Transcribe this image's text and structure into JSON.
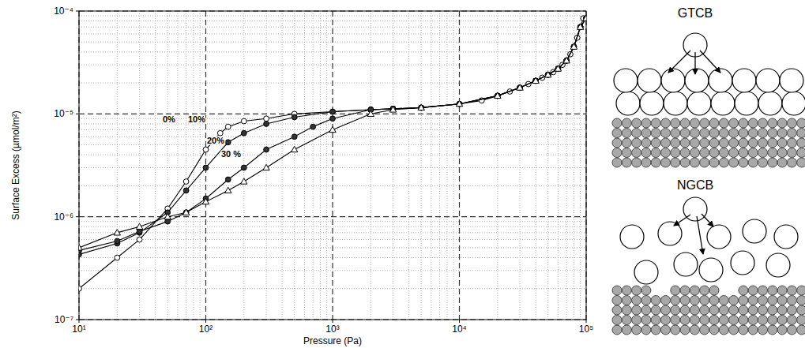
{
  "chart_data": {
    "type": "line",
    "x_label": "Pressure (Pa)",
    "y_label": "Surface Excess (µmol/m²)",
    "log": true,
    "grid": true,
    "xlim": [
      10,
      100000
    ],
    "ylim": [
      1e-07,
      0.0001
    ],
    "xticks": [
      {
        "value": 10,
        "label": "10¹"
      },
      {
        "value": 100,
        "label": "10²"
      },
      {
        "value": 1000,
        "label": "10³"
      },
      {
        "value": 10000,
        "label": "10⁴"
      },
      {
        "value": 100000,
        "label": "10⁵"
      }
    ],
    "yticks": [
      {
        "value": 1e-07,
        "label": "10⁻⁷"
      },
      {
        "value": 1e-06,
        "label": "10⁻⁶"
      },
      {
        "value": 1e-05,
        "label": "10⁻⁵"
      },
      {
        "value": 0.0001,
        "label": "10⁻⁴"
      }
    ],
    "series": [
      {
        "name": "0%",
        "color": "#000000",
        "marker": "circle-open",
        "line_style": "solid",
        "x": [
          10,
          20,
          30,
          50,
          70,
          100,
          130,
          150,
          200,
          300,
          500,
          1000,
          2000,
          3000,
          5000,
          10000,
          15000,
          20000,
          25000,
          30000,
          35000,
          40000,
          45000,
          50000,
          55000,
          60000,
          65000,
          70000,
          75000,
          80000,
          85000,
          90000,
          95000,
          100000
        ],
        "values": [
          2e-07,
          4e-07,
          6e-07,
          1.2e-06,
          2.2e-06,
          4.5e-06,
          6.5e-06,
          7.5e-06,
          8.5e-06,
          9e-06,
          1e-05,
          1.05e-05,
          1.1e-05,
          1.12e-05,
          1.15e-05,
          1.25e-05,
          1.35e-05,
          1.5e-05,
          1.65e-05,
          1.8e-05,
          1.95e-05,
          2.1e-05,
          2.25e-05,
          2.4e-05,
          2.55e-05,
          2.75e-05,
          3e-05,
          3.3e-05,
          3.8e-05,
          4.5e-05,
          5.5e-05,
          7e-05,
          8.5e-05,
          8.5e-05
        ]
      },
      {
        "name": "10%",
        "color": "#000000",
        "marker": "circle",
        "line_style": "solid",
        "x": [
          10,
          20,
          30,
          50,
          70,
          100,
          150,
          200,
          300,
          500,
          1000,
          2000,
          3000,
          5000,
          10000,
          20000,
          30000,
          40000,
          50000,
          60000,
          70000,
          80000,
          90000,
          100000
        ],
        "values": [
          4.3e-07,
          5.5e-07,
          7e-07,
          1.1e-06,
          1.8e-06,
          3e-06,
          5.3e-06,
          6.5e-06,
          8e-06,
          9.3e-06,
          1.05e-05,
          1.1e-05,
          1.12e-05,
          1.15e-05,
          1.25e-05,
          1.5e-05,
          1.8e-05,
          2.1e-05,
          2.4e-05,
          2.75e-05,
          3.3e-05,
          4.5e-05,
          7e-05,
          8.5e-05
        ]
      },
      {
        "name": "20%",
        "color": "#000000",
        "marker": "circle",
        "line_style": "solid",
        "x": [
          10,
          20,
          30,
          50,
          70,
          100,
          150,
          200,
          300,
          500,
          700,
          1000,
          2000,
          3000,
          5000,
          10000,
          20000,
          30000,
          40000,
          50000,
          60000,
          70000,
          80000,
          90000,
          100000
        ],
        "values": [
          4.7e-07,
          5.8e-07,
          7.2e-07,
          9e-07,
          1.1e-06,
          1.5e-06,
          2.3e-06,
          3e-06,
          4.5e-06,
          6e-06,
          7.5e-06,
          9e-06,
          1.1e-05,
          1.12e-05,
          1.15e-05,
          1.25e-05,
          1.5e-05,
          1.8e-05,
          2.1e-05,
          2.4e-05,
          2.75e-05,
          3.3e-05,
          4.5e-05,
          7e-05,
          8.5e-05
        ]
      },
      {
        "name": "30 %",
        "color": "#000000",
        "marker": "triangle-open",
        "line_style": "solid",
        "x": [
          10,
          20,
          30,
          50,
          70,
          100,
          150,
          200,
          300,
          500,
          1000,
          2000,
          3000,
          5000,
          10000,
          20000,
          30000,
          40000,
          50000,
          60000,
          70000,
          80000,
          90000,
          100000
        ],
        "values": [
          5e-07,
          7e-07,
          8e-07,
          1e-06,
          1.1e-06,
          1.4e-06,
          1.8e-06,
          2.2e-06,
          3e-06,
          4.5e-06,
          7e-06,
          1e-05,
          1.1e-05,
          1.15e-05,
          1.25e-05,
          1.5e-05,
          1.8e-05,
          2.1e-05,
          2.4e-05,
          2.75e-05,
          3.3e-05,
          4.5e-05,
          7e-05,
          8.5e-05
        ]
      }
    ]
  },
  "diagrams": [
    {
      "label": "GTCB"
    },
    {
      "label": "NGCB"
    }
  ]
}
